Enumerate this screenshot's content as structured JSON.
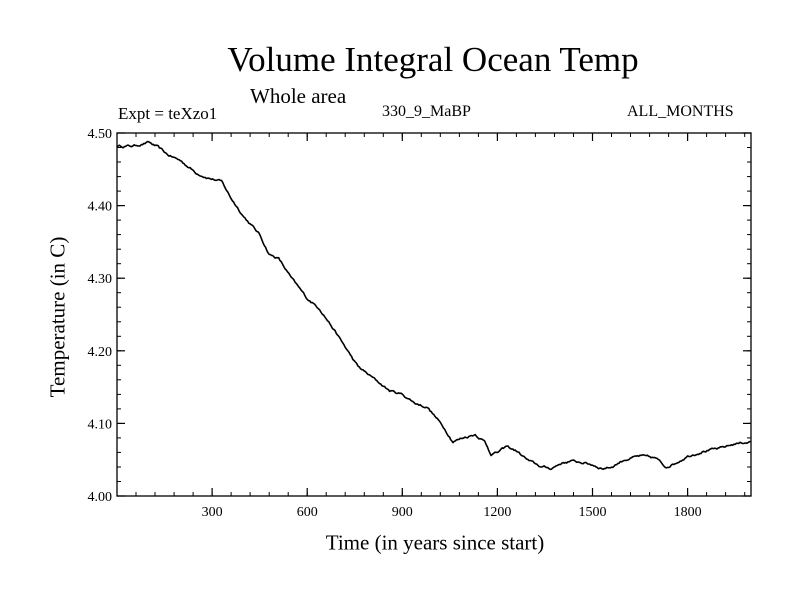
{
  "chart_data": {
    "type": "line",
    "title": "Volume Integral Ocean Temp",
    "subtitle": "Whole area",
    "annotations": {
      "experiment": "Expt = teXzo1",
      "case": "330_9_MaBP",
      "months": "ALL_MONTHS"
    },
    "xlabel": "Time (in years since start)",
    "ylabel": "Temperature (in C)",
    "xlim": [
      0,
      2000
    ],
    "ylim": [
      4.0,
      4.5
    ],
    "xticks": [
      300,
      600,
      900,
      1200,
      1500,
      1800
    ],
    "xtick_labels": [
      "300",
      "600",
      "900",
      "1200",
      "1500",
      "1800"
    ],
    "yticks": [
      4.0,
      4.1,
      4.2,
      4.3,
      4.4,
      4.5
    ],
    "ytick_labels": [
      "4.00",
      "4.10",
      "4.20",
      "4.30",
      "4.40",
      "4.50"
    ],
    "series": [
      {
        "name": "Volume Integral Ocean Temp",
        "x": [
          0,
          50,
          100,
          130,
          160,
          200,
          250,
          290,
          330,
          360,
          400,
          450,
          480,
          510,
          550,
          600,
          640,
          680,
          720,
          760,
          800,
          860,
          900,
          940,
          980,
          1030,
          1060,
          1090,
          1130,
          1160,
          1180,
          1200,
          1230,
          1260,
          1300,
          1340,
          1370,
          1400,
          1430,
          1470,
          1500,
          1530,
          1560,
          1600,
          1650,
          1700,
          1730,
          1760,
          1800,
          1850,
          1900,
          1950,
          2000
        ],
        "y": [
          4.482,
          4.482,
          4.487,
          4.48,
          4.47,
          4.462,
          4.445,
          4.438,
          4.433,
          4.41,
          4.385,
          4.36,
          4.333,
          4.327,
          4.3,
          4.272,
          4.258,
          4.232,
          4.205,
          4.178,
          4.165,
          4.145,
          4.14,
          4.128,
          4.122,
          4.095,
          4.075,
          4.08,
          4.085,
          4.075,
          4.058,
          4.06,
          4.068,
          4.062,
          4.048,
          4.04,
          4.038,
          4.045,
          4.048,
          4.046,
          4.043,
          4.038,
          4.04,
          4.05,
          4.055,
          4.052,
          4.04,
          4.045,
          4.055,
          4.062,
          4.065,
          4.072,
          4.075
        ]
      }
    ]
  }
}
